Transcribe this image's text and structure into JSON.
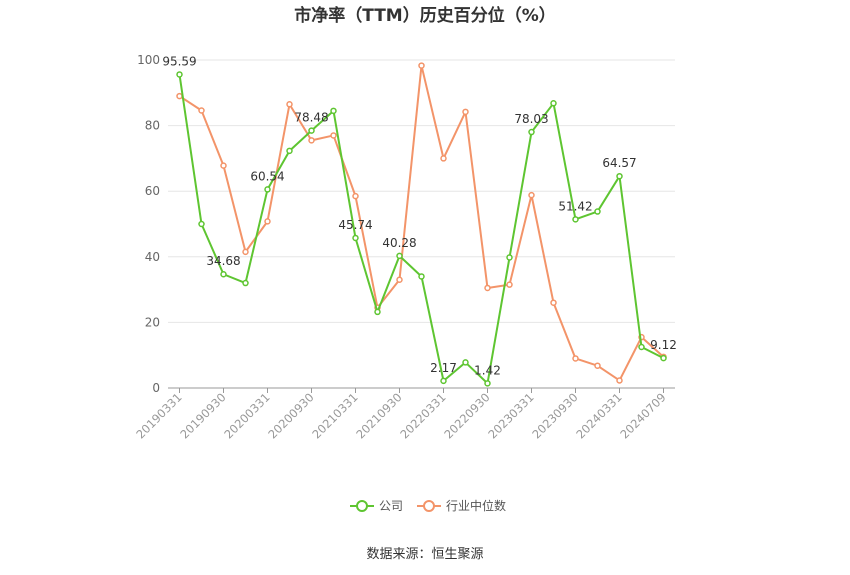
{
  "chart_data": {
    "type": "line",
    "title": "市净率（TTM）历史百分位（%）",
    "xlabel": "",
    "ylabel": "",
    "ylim": [
      0,
      100
    ],
    "yticks": [
      0,
      20,
      40,
      60,
      80,
      100
    ],
    "grid": true,
    "legend_position": "bottom",
    "x": [
      "20190331",
      "20190630",
      "20190930",
      "20191231",
      "20200331",
      "20200630",
      "20200930",
      "20201231",
      "20210331",
      "20210630",
      "20210930",
      "20211231",
      "20220331",
      "20220630",
      "20220930",
      "20221231",
      "20230331",
      "20230630",
      "20230930",
      "20231231",
      "20240331",
      "20240630",
      "20240709"
    ],
    "xtick_labels": [
      "20190331",
      "20190930",
      "20200331",
      "20200930",
      "20210331",
      "20210930",
      "20220331",
      "20220930",
      "20230331",
      "20230930",
      "20240331",
      "20240709"
    ],
    "series": [
      {
        "name": "公司",
        "color": "#5ec531",
        "values": [
          95.59,
          50.0,
          34.68,
          32.0,
          60.54,
          72.3,
          78.48,
          84.5,
          45.74,
          23.2,
          40.28,
          34.0,
          2.17,
          7.8,
          1.42,
          39.8,
          78.03,
          86.8,
          51.42,
          53.8,
          64.57,
          12.5,
          9.12
        ]
      },
      {
        "name": "行业中位数",
        "color": "#f39469",
        "values": [
          89.0,
          84.6,
          67.8,
          41.5,
          50.8,
          86.5,
          75.5,
          77.0,
          58.5,
          24.5,
          33.0,
          98.3,
          70.0,
          84.2,
          30.5,
          31.5,
          58.8,
          26.0,
          9.0,
          6.8,
          2.3,
          15.5,
          9.5
        ]
      }
    ],
    "data_labels": [
      {
        "index": 0,
        "text": "95.59"
      },
      {
        "index": 2,
        "text": "34.68"
      },
      {
        "index": 4,
        "text": "60.54"
      },
      {
        "index": 6,
        "text": "78.48"
      },
      {
        "index": 8,
        "text": "45.74"
      },
      {
        "index": 10,
        "text": "40.28"
      },
      {
        "index": 12,
        "text": "2.17"
      },
      {
        "index": 14,
        "text": "1.42"
      },
      {
        "index": 16,
        "text": "78.03"
      },
      {
        "index": 18,
        "text": "51.42"
      },
      {
        "index": 20,
        "text": "64.57"
      },
      {
        "index": 22,
        "text": "9.12"
      }
    ]
  },
  "source_text": "数据来源：恒生聚源"
}
